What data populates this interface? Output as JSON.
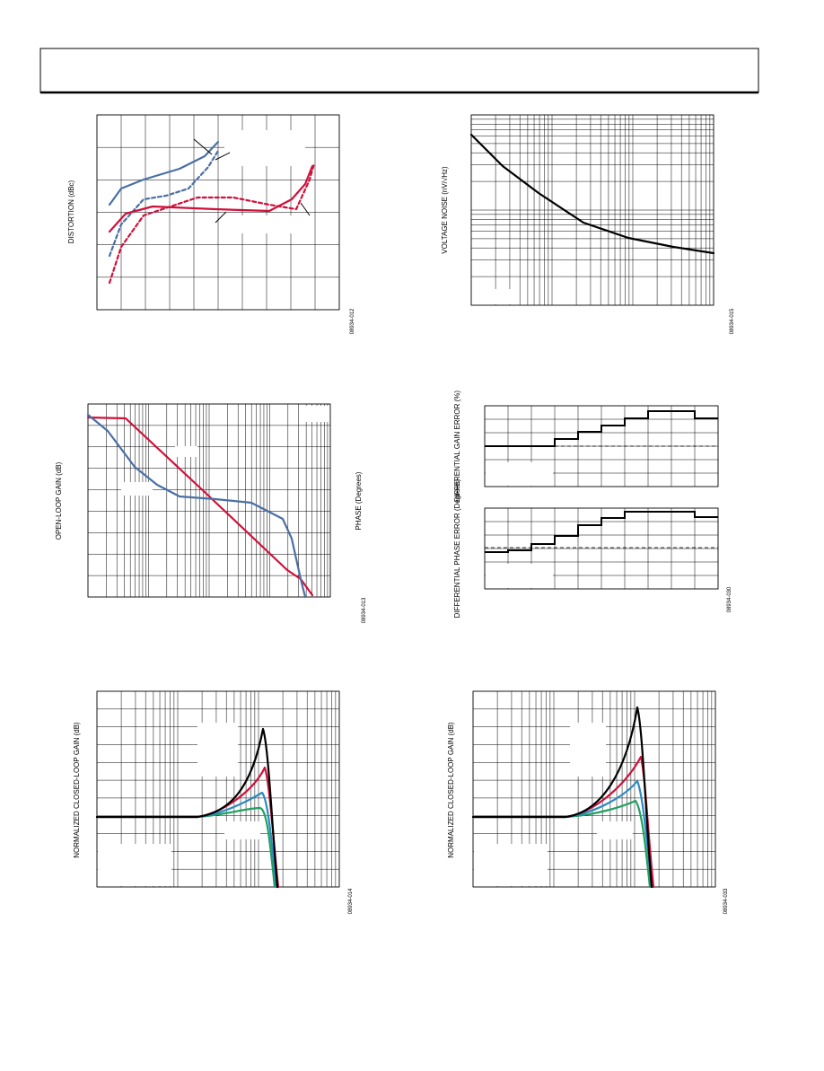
{
  "figures": [
    {
      "ylabel": "DISTORTION (dBc)",
      "code": "08934-012"
    },
    {
      "ylabel": "VOLTAGE NOISE (nV/√Hz)",
      "code": "08934-015"
    },
    {
      "ylabel": "OPEN-LOOP GAIN (dB)",
      "y2label": "PHASE (Degrees)",
      "code": "08934-013"
    },
    {
      "ylabel": "DIFFERENTIAL GAIN ERROR (%)",
      "y2label": "DIFFERENTIAL PHASE ERROR (Degrees)",
      "code": "08934-030"
    },
    {
      "ylabel": "NORMALIZED CLOSED-LOOP GAIN (dB)",
      "code": "08934-014"
    },
    {
      "ylabel": "NORMALIZED CLOSED-LOOP GAIN (dB)",
      "code": "08934-033"
    }
  ]
}
